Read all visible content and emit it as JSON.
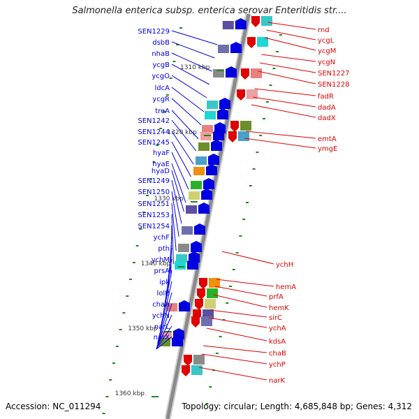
{
  "title": "Salmonella enterica subsp. enterica serovar Enteritidis str....",
  "accession": "Accession: NC_011294",
  "topology": "Topology: circular; Length: 4,685,848 bp; Genes: 4,312",
  "colors": {
    "forward": "#0000e0",
    "reverse": "#e00000",
    "backbone": "#8a8a8a",
    "tick": "#1a8a1a"
  },
  "kbp_ticks": [
    "1310 kbp",
    "1320 kbp",
    "1330 kbp",
    "1340 kbp",
    "1350 kbp",
    "1360 kbp"
  ],
  "forward_genes": [
    "SEN1229",
    "dsbB",
    "nhaB",
    "ycgB",
    "ycgO",
    "ldcA",
    "ycgR",
    "treA",
    "SEN1242",
    "SEN1244",
    "SEN1245",
    "hyaF",
    "hyaE",
    "hyaD",
    "SEN1249",
    "SEN1250",
    "SEN1251",
    "SEN1253",
    "SEN1254",
    "ychF",
    "pth",
    "ychM",
    "prsA",
    "ipk",
    "lolB",
    "chaA",
    "ychN",
    "narL",
    "narX"
  ],
  "reverse_genes": [
    "rnd",
    "ycgL",
    "ycgM",
    "ycgN",
    "SEN1227",
    "SEN1228",
    "fadR",
    "dadA",
    "dadX",
    "emtA",
    "ymgE",
    "ychH",
    "hemA",
    "prfA",
    "hemK",
    "sirC",
    "ychA",
    "kdsA",
    "chaB",
    "ychP",
    "narK"
  ]
}
